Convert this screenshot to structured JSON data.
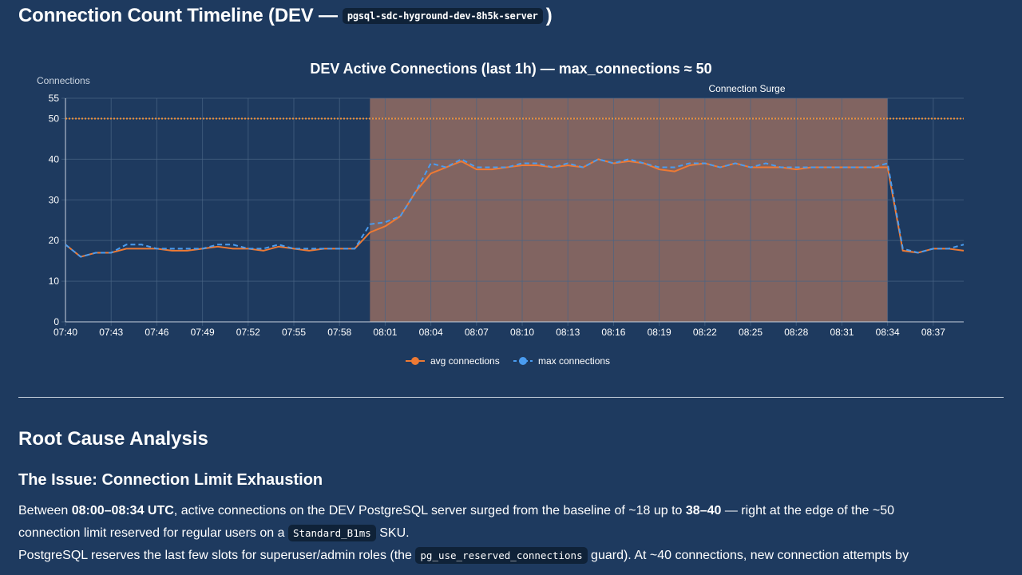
{
  "page": {
    "title_prefix": "Connection Count Timeline (DEV —",
    "title_code": "pgsql-sdc-hyground-dev-8h5k-server",
    "title_suffix": ")"
  },
  "chart_data": {
    "type": "line",
    "title": "DEV Active Connections (last 1h) — max_connections ≈ 50",
    "ylabel": "Connections",
    "ylim": [
      0,
      55
    ],
    "yticks": [
      0,
      10,
      20,
      30,
      40,
      50,
      55
    ],
    "xticks": [
      "07:40",
      "07:43",
      "07:46",
      "07:49",
      "07:52",
      "07:55",
      "07:58",
      "08:01",
      "08:04",
      "08:07",
      "08:10",
      "08:13",
      "08:16",
      "08:19",
      "08:22",
      "08:25",
      "08:28",
      "08:31",
      "08:34",
      "08:37"
    ],
    "x_start_minute": 0,
    "x_end_minute": 59,
    "grid": true,
    "reference_line": {
      "value": 50,
      "color": "#f0903a",
      "style": "dotted"
    },
    "highlight_band": {
      "label": "Connection Surge",
      "from_minute": 20,
      "to_minute": 54,
      "color": "#8f6a62"
    },
    "series": [
      {
        "name": "avg connections",
        "color": "#ee7a34",
        "style": "solid",
        "values": [
          19,
          16,
          17,
          17,
          18,
          18,
          18,
          17.5,
          17.5,
          18,
          18.5,
          18,
          18,
          17.5,
          18.5,
          18,
          17.5,
          18,
          18,
          18,
          22,
          23.5,
          26,
          32,
          36.5,
          38,
          39.5,
          37.5,
          37.5,
          38,
          38.5,
          38.5,
          38,
          38.5,
          38,
          40,
          39,
          39.5,
          39,
          37.5,
          37,
          38.5,
          39,
          38,
          39,
          38,
          38,
          38,
          37.5,
          38,
          38,
          38,
          38,
          38,
          38,
          17.5,
          17,
          18,
          18,
          17.5
        ]
      },
      {
        "name": "max connections",
        "color": "#4a9cf0",
        "style": "dashed",
        "values": [
          19,
          16,
          17,
          17,
          19,
          19,
          18,
          18,
          18,
          18,
          19,
          19,
          18,
          18,
          19,
          18,
          18,
          18,
          18,
          18,
          24,
          24.5,
          26,
          32,
          39,
          38,
          40,
          38,
          38,
          38,
          39,
          39,
          38,
          39,
          38,
          40,
          39,
          40,
          39,
          38,
          38,
          39,
          39,
          38,
          39,
          38,
          39,
          38,
          38,
          38,
          38,
          38,
          38,
          38,
          39,
          18,
          17,
          18,
          18,
          19
        ]
      }
    ]
  },
  "rca": {
    "heading": "Root Cause Analysis",
    "subheading": "The Issue: Connection Limit Exhaustion",
    "p1_a": "Between ",
    "p1_b": "08:00–08:34 UTC",
    "p1_c": ", active connections on the DEV PostgreSQL server surged from the baseline of ~18 up to ",
    "p1_d": "38–40",
    "p1_e": " — right at the edge of the ~50",
    "p1_f": "connection limit reserved for regular users on a ",
    "p1_code": "Standard_B1ms",
    "p1_g": " SKU.",
    "p2_a": "PostgreSQL reserves the last few slots for superuser/admin roles (the ",
    "p2_code": "pg_use_reserved_connections",
    "p2_b": " guard). At ~40 connections, new connection attempts by"
  }
}
